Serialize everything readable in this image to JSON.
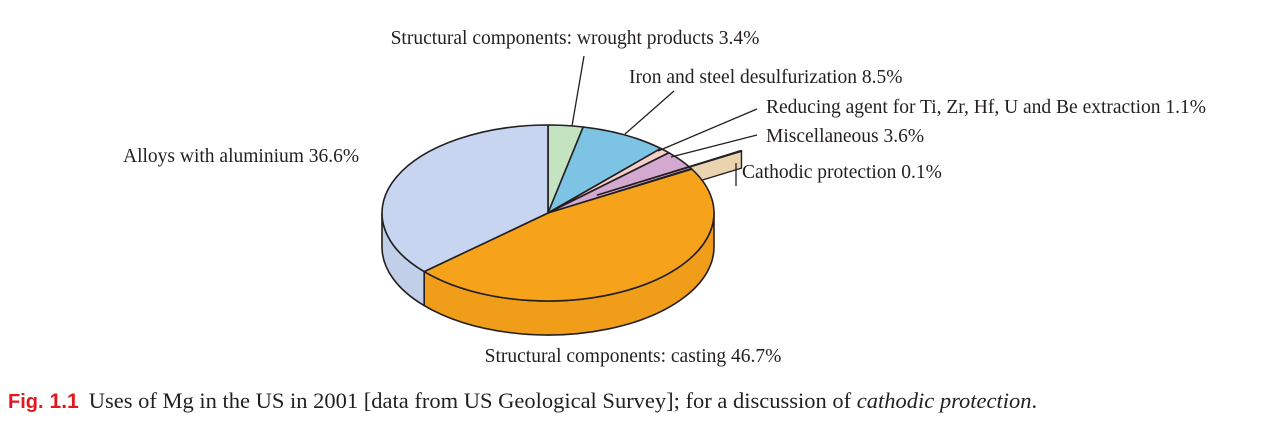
{
  "chart_data": {
    "type": "pie",
    "title": "",
    "style": "3d",
    "unit": "%",
    "slices": [
      {
        "label": "Structural components: wrought products 3.4%",
        "name": "Structural components: wrought products",
        "value": 3.4,
        "color": "#c4e3c1"
      },
      {
        "label": "Iron and steel desulfurization 8.5%",
        "name": "Iron and steel desulfurization",
        "value": 8.5,
        "color": "#7cc3e4"
      },
      {
        "label": "Reducing agent for Ti, Zr, Hf, U and Be extraction 1.1%",
        "name": "Reducing agent for Ti, Zr, Hf, U and Be extraction",
        "value": 1.1,
        "color": "#f7cfc9"
      },
      {
        "label": "Miscellaneous 3.6%",
        "name": "Miscellaneous",
        "value": 3.6,
        "color": "#d3a9d0"
      },
      {
        "label": "Cathodic protection 0.1%",
        "name": "Cathodic protection",
        "value": 0.1,
        "color": "#f6dfb9",
        "exploded": true
      },
      {
        "label": "Structural components: casting 46.7%",
        "name": "Structural components: casting",
        "value": 46.7,
        "color": "#f7a21b"
      },
      {
        "label": "Alloys with aluminium 36.6%",
        "name": "Alloys with aluminium",
        "value": 36.6,
        "color": "#c8d5f0"
      }
    ]
  },
  "caption": {
    "fig_word": "Fig.",
    "fig_number": "1.1",
    "text": "Uses of Mg in the US in 2001 [data from US Geological Survey]; for a discussion of ",
    "italic_text": "cathodic protection",
    "end": "."
  }
}
